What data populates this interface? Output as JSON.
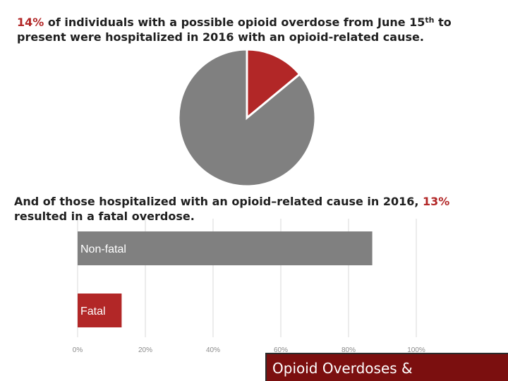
{
  "header": {
    "pct": "14%",
    "pre": " of individuals with a possible opioid overdose from June 15",
    "sup": "th",
    "post": " to present were hospitalized in 2016 with an opioid-related cause."
  },
  "subheader": {
    "pre": "And of those hospitalized with an opioid–related cause in 2016, ",
    "pct": "13%",
    "post": " resulted in a fatal overdose."
  },
  "colors": {
    "accent": "#b22727",
    "gray": "#808080"
  },
  "chart_data": [
    {
      "type": "pie",
      "slices": [
        {
          "label": "",
          "value": 14,
          "color": "#b22727"
        },
        {
          "label": "",
          "value": 86,
          "color": "#808080"
        }
      ]
    },
    {
      "type": "bar",
      "orientation": "horizontal",
      "stacked": false,
      "categories": [
        "Non-fatal",
        "Fatal"
      ],
      "values": [
        87,
        13
      ],
      "colors": [
        "#808080",
        "#b22727"
      ],
      "xlim": [
        0,
        100
      ],
      "xticks": [
        "0%",
        "20%",
        "40%",
        "60%",
        "80%",
        "100%"
      ],
      "grid": true
    }
  ],
  "footer": {
    "title": "Opioid Overdoses &"
  }
}
